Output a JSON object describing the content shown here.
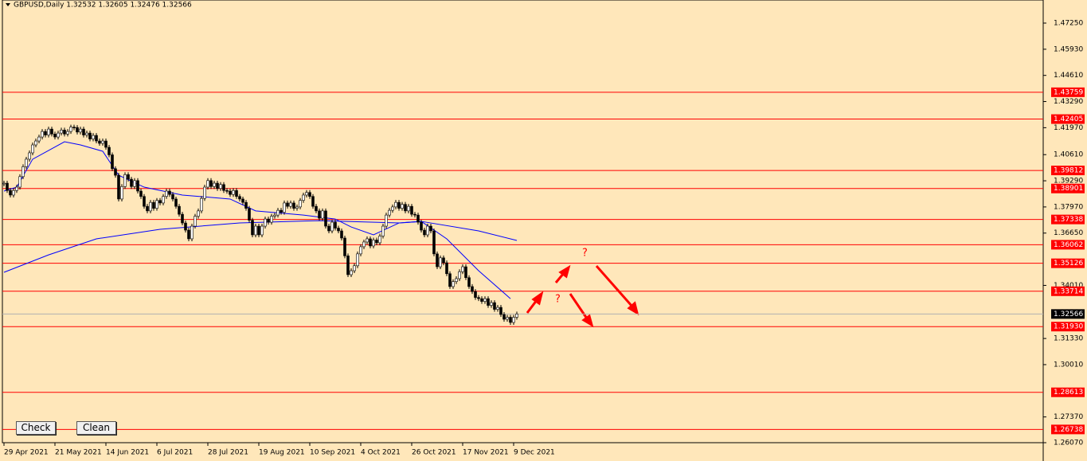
{
  "chart_data": {
    "type": "candlestick",
    "title": "GBPUSD,Daily  1.32532 1.32605 1.32476 1.32566",
    "ylim": [
      1.2607,
      1.4725
    ],
    "yticks": [
      {
        "value": 1.4725,
        "label": "1.47250"
      },
      {
        "value": 1.4593,
        "label": "1.45930"
      },
      {
        "value": 1.4461,
        "label": "1.44610"
      },
      {
        "value": 1.4329,
        "label": "1.43290"
      },
      {
        "value": 1.4197,
        "label": "1.41970"
      },
      {
        "value": 1.4061,
        "label": "1.40610"
      },
      {
        "value": 1.3929,
        "label": "1.39290"
      },
      {
        "value": 1.3797,
        "label": "1.37970"
      },
      {
        "value": 1.3665,
        "label": "1.36650"
      },
      {
        "value": 1.3401,
        "label": "1.34010"
      },
      {
        "value": 1.3133,
        "label": "1.31330"
      },
      {
        "value": 1.3001,
        "label": "1.30010"
      },
      {
        "value": 1.2737,
        "label": "1.27370"
      },
      {
        "value": 1.2607,
        "label": "1.26070"
      }
    ],
    "date_labels": [
      "29 Apr 2021",
      "21 May 2021",
      "14 Jun 2021",
      "6 Jul 2021",
      "28 Jul 2021",
      "19 Aug 2021",
      "10 Sep 2021",
      "4 Oct 2021",
      "26 Oct 2021",
      "17 Nov 2021",
      "9 Dec 2021"
    ],
    "close": [
      1.3917,
      1.388,
      1.3857,
      1.388,
      1.3897,
      1.395,
      1.4,
      1.4038,
      1.407,
      1.411,
      1.413,
      1.415,
      1.4178,
      1.416,
      1.419,
      1.4165,
      1.415,
      1.417,
      1.4185,
      1.4165,
      1.4178,
      1.42,
      1.4198,
      1.4175,
      1.419,
      1.416,
      1.417,
      1.414,
      1.4158,
      1.413,
      1.4118,
      1.413,
      1.4098,
      1.406,
      1.399,
      1.3957,
      1.3837,
      1.39,
      1.396,
      1.3937,
      1.39,
      1.393,
      1.3877,
      1.385,
      1.38,
      1.3777,
      1.382,
      1.379,
      1.383,
      1.3817,
      1.385,
      1.3877,
      1.386,
      1.3837,
      1.38,
      1.376,
      1.3716,
      1.368,
      1.3636,
      1.37,
      1.375,
      1.3777,
      1.384,
      1.3897,
      1.393,
      1.39,
      1.3917,
      1.389,
      1.391,
      1.388,
      1.3877,
      1.386,
      1.388,
      1.385,
      1.3837,
      1.382,
      1.379,
      1.373,
      1.3656,
      1.37,
      1.3656,
      1.37,
      1.3736,
      1.372,
      1.375,
      1.3756,
      1.378,
      1.377,
      1.3817,
      1.38,
      1.3817,
      1.379,
      1.3797,
      1.383,
      1.3857,
      1.387,
      1.385,
      1.38,
      1.3777,
      1.374,
      1.3777,
      1.37,
      1.3676,
      1.372,
      1.369,
      1.3676,
      1.364,
      1.355,
      1.3455,
      1.3475,
      1.35,
      1.356,
      1.3596,
      1.362,
      1.3636,
      1.36,
      1.363,
      1.3616,
      1.365,
      1.37,
      1.3756,
      1.378,
      1.3797,
      1.382,
      1.379,
      1.381,
      1.3777,
      1.38,
      1.376,
      1.3756,
      1.372,
      1.368,
      1.3656,
      1.37,
      1.3676,
      1.356,
      1.3495,
      1.354,
      1.3515,
      1.346,
      1.3395,
      1.342,
      1.3435,
      1.347,
      1.3495,
      1.344,
      1.3395,
      1.337,
      1.334,
      1.3334,
      1.332,
      1.3334,
      1.33,
      1.3314,
      1.328,
      1.329,
      1.3254,
      1.323,
      1.324,
      1.3214,
      1.324,
      1.32566
    ],
    "moving_averages": [
      {
        "color": "#0000ff",
        "x": [
          0,
          4,
          9,
          19,
          24,
          31,
          36,
          44,
          56,
          71,
          79,
          94,
          104,
          109,
          116,
          124,
          131,
          139,
          149,
          159
        ],
        "values": [
          1.3877,
          1.3897,
          1.4038,
          1.4126,
          1.411,
          1.4078,
          1.3957,
          1.3897,
          1.3857,
          1.3837,
          1.3777,
          1.3756,
          1.3736,
          1.3696,
          1.3656,
          1.3716,
          1.3724,
          1.3636,
          1.3475,
          1.3334
        ]
      },
      {
        "color": "#0000ff",
        "x": [
          0,
          14,
          29,
          49,
          74,
          99,
          124,
          131,
          149,
          161
        ],
        "values": [
          1.3467,
          1.3555,
          1.3636,
          1.3684,
          1.3716,
          1.3728,
          1.3716,
          1.3724,
          1.3676,
          1.3628
        ]
      }
    ],
    "levels": [
      {
        "value": 1.43759,
        "label": "1.43759"
      },
      {
        "value": 1.42405,
        "label": "1.42405"
      },
      {
        "value": 1.39812,
        "label": "1.39812"
      },
      {
        "value": 1.38901,
        "label": "1.38901"
      },
      {
        "value": 1.37338,
        "label": "1.37338"
      },
      {
        "value": 1.36062,
        "label": "1.36062"
      },
      {
        "value": 1.35126,
        "label": "1.35126"
      },
      {
        "value": 1.33714,
        "label": "1.33714"
      },
      {
        "value": 1.3193,
        "label": "1.31930"
      },
      {
        "value": 1.28613,
        "label": "1.28613"
      },
      {
        "value": 1.26738,
        "label": "1.26738"
      }
    ],
    "level_color": "#ff0000",
    "current_price": {
      "value": 1.32566,
      "label": "1.32566"
    },
    "annotations": [
      "?",
      "?"
    ],
    "buttons": [
      "Check",
      "Clean"
    ]
  }
}
